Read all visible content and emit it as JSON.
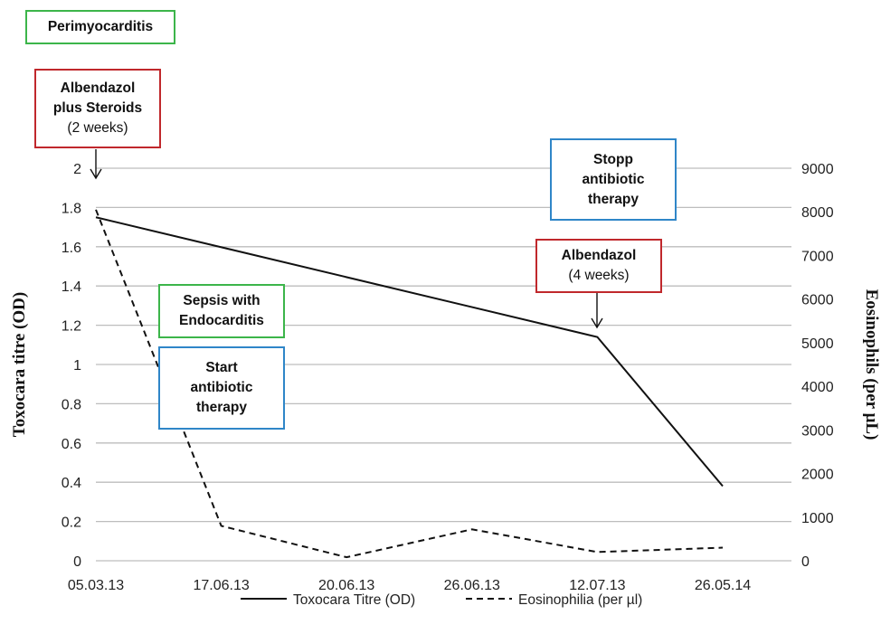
{
  "chart_data": {
    "type": "line",
    "categories": [
      "05.03.13",
      "17.06.13",
      "20.06.13",
      "26.06.13",
      "12.07.13",
      "26.05.14"
    ],
    "series": [
      {
        "name": "Toxocara Titre (OD)",
        "axis": "left",
        "style": "solid",
        "values": [
          1.75,
          null,
          null,
          null,
          1.14,
          0.38
        ]
      },
      {
        "name": "Eosinophilia (per µl)",
        "axis": "right",
        "style": "dashed",
        "values": [
          8050,
          800,
          80,
          720,
          200,
          300
        ]
      }
    ],
    "ylabel": "Toxocara titre (OD)",
    "y2label": "Eosinophils (per µL)",
    "ylim": [
      0,
      2
    ],
    "y2lim": [
      0,
      9000
    ],
    "yticks": [
      "0",
      "0.2",
      "0.4",
      "0.6",
      "0.8",
      "1",
      "1.2",
      "1.4",
      "1.6",
      "1.8",
      "2"
    ],
    "y2ticks": [
      "0",
      "1000",
      "2000",
      "3000",
      "4000",
      "5000",
      "6000",
      "7000",
      "8000",
      "9000"
    ],
    "grid": true,
    "legend": "bottom",
    "annotations": [
      {
        "id": "perimyocarditis",
        "color": "green",
        "bold": "Perimyocarditis",
        "normal": ""
      },
      {
        "id": "albendazol-steroids",
        "color": "red",
        "bold": "Albendazol plus Steroids",
        "normal": "(2 weeks)"
      },
      {
        "id": "stopp-antibiotic",
        "color": "blue",
        "bold": "Stopp antibiotic therapy",
        "normal": ""
      },
      {
        "id": "albendazol",
        "color": "red",
        "bold": "Albendazol",
        "normal": "(4 weeks)"
      },
      {
        "id": "sepsis",
        "color": "green",
        "bold": "Sepsis with Endocarditis",
        "normal": ""
      },
      {
        "id": "start-antibiotic",
        "color": "blue",
        "bold": "Start antibiotic therapy",
        "normal": ""
      }
    ]
  },
  "colors": {
    "green": "#3cb54a",
    "red": "#c0282c",
    "blue": "#2f86c8",
    "grid": "#bdbdbd",
    "line": "#111111"
  }
}
